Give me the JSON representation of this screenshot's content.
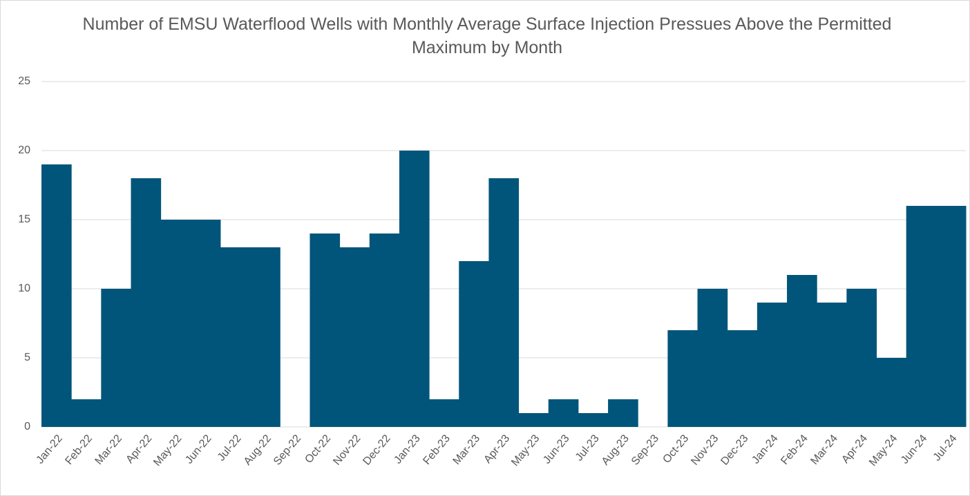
{
  "chart_data": {
    "type": "bar",
    "title": "Number of EMSU Waterflood Wells with Monthly Average Surface Injection Pressues Above the Permitted Maximum by Month",
    "categories": [
      "Jan-22",
      "Feb-22",
      "Mar-22",
      "Apr-22",
      "May-22",
      "Jun-22",
      "Jul-22",
      "Aug-22",
      "Sep-22",
      "Oct-22",
      "Nov-22",
      "Dec-22",
      "Jan-23",
      "Feb-23",
      "Mar-23",
      "Apr-23",
      "May-23",
      "Jun-23",
      "Jul-23",
      "Aug-23",
      "Sep-23",
      "Oct-23",
      "Nov-23",
      "Dec-23",
      "Jan-24",
      "Feb-24",
      "Mar-24",
      "Apr-24",
      "May-24",
      "Jun-24",
      "Jul-24"
    ],
    "values": [
      19,
      2,
      10,
      18,
      15,
      15,
      13,
      13,
      0,
      14,
      13,
      14,
      20,
      2,
      12,
      18,
      1,
      2,
      1,
      2,
      0,
      7,
      10,
      7,
      9,
      11,
      9,
      10,
      5,
      16,
      16
    ],
    "color": "#02557a",
    "ylim": [
      0,
      25
    ],
    "yticks": [
      0,
      5,
      10,
      15,
      20,
      25
    ],
    "grid": true
  }
}
